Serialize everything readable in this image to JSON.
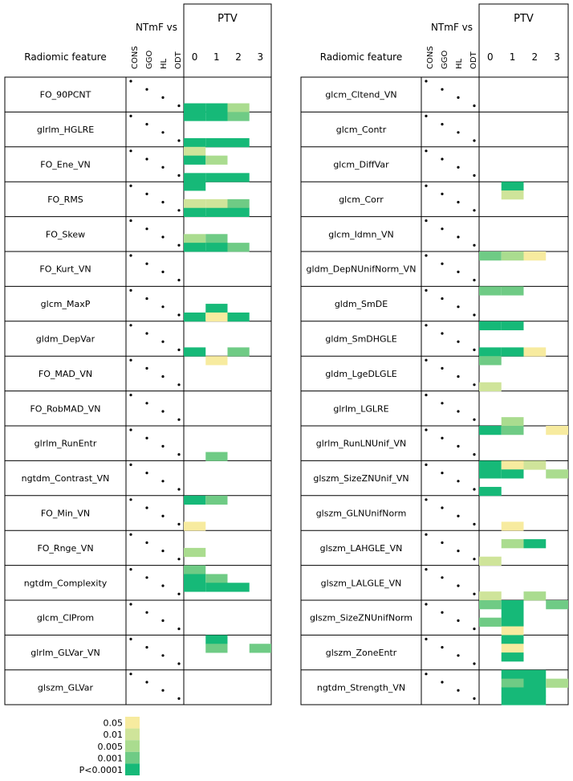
{
  "chart_data": {
    "type": "heatmap",
    "header": {
      "feature_col": "Radiomic feature",
      "group_title": "NTmF vs",
      "sub_labels": [
        "CONS",
        "GGO",
        "HL",
        "ODT"
      ],
      "ptv_title": "PTV",
      "ptv_levels": [
        "0",
        "1",
        "2",
        "3"
      ]
    },
    "legend": [
      {
        "label": "0.05",
        "color": "#f7eb9f"
      },
      {
        "label": "0.01",
        "color": "#cfe49a"
      },
      {
        "label": "0.005",
        "color": "#aadc8f"
      },
      {
        "label": "0.001",
        "color": "#6fcb85"
      },
      {
        "label": "P<0.0001",
        "color": "#16b978"
      }
    ],
    "colors_by_level": [
      "#16b978",
      "#6fcb85",
      "#aadc8f",
      "#cfe49a",
      "#f7eb9f"
    ],
    "level_meaning": "index into legend from darkest (0 = P<0.0001) to lightest (4 = 0.05)",
    "panels": [
      {
        "features": [
          "FO_90PCNT",
          "glrlm_HGLRE",
          "FO_Ene_VN",
          "FO_RMS",
          "FO_Skew",
          "FO_Kurt_VN",
          "glcm_MaxP",
          "gldm_DepVar",
          "FO_MAD_VN",
          "FO_RobMAD_VN",
          "glrlm_RunEntr",
          "ngtdm_Contrast_VN",
          "FO_Min_VN",
          "FO_Rnge_VN",
          "ngtdm_Complexity",
          "glcm_ClProm",
          "glrlm_GLVar_VN",
          "glszm_GLVar"
        ],
        "cells": [
          {
            "feature": 0,
            "row": 3,
            "ptv": 0,
            "level": 0
          },
          {
            "feature": 0,
            "row": 3,
            "ptv": 1,
            "level": 0
          },
          {
            "feature": 0,
            "row": 3,
            "ptv": 2,
            "level": 2
          },
          {
            "feature": 1,
            "row": 0,
            "ptv": 0,
            "level": 0
          },
          {
            "feature": 1,
            "row": 0,
            "ptv": 1,
            "level": 0
          },
          {
            "feature": 1,
            "row": 0,
            "ptv": 2,
            "level": 1
          },
          {
            "feature": 1,
            "row": 3,
            "ptv": 0,
            "level": 0
          },
          {
            "feature": 1,
            "row": 3,
            "ptv": 1,
            "level": 0
          },
          {
            "feature": 1,
            "row": 3,
            "ptv": 2,
            "level": 0
          },
          {
            "feature": 2,
            "row": 0,
            "ptv": 0,
            "level": 3
          },
          {
            "feature": 2,
            "row": 1,
            "ptv": 0,
            "level": 0
          },
          {
            "feature": 2,
            "row": 1,
            "ptv": 1,
            "level": 2
          },
          {
            "feature": 2,
            "row": 3,
            "ptv": 0,
            "level": 0
          },
          {
            "feature": 2,
            "row": 3,
            "ptv": 1,
            "level": 0
          },
          {
            "feature": 2,
            "row": 3,
            "ptv": 2,
            "level": 0
          },
          {
            "feature": 3,
            "row": 0,
            "ptv": 0,
            "level": 0
          },
          {
            "feature": 3,
            "row": 2,
            "ptv": 0,
            "level": 3
          },
          {
            "feature": 3,
            "row": 2,
            "ptv": 1,
            "level": 3
          },
          {
            "feature": 3,
            "row": 2,
            "ptv": 2,
            "level": 1
          },
          {
            "feature": 3,
            "row": 3,
            "ptv": 0,
            "level": 0
          },
          {
            "feature": 3,
            "row": 3,
            "ptv": 1,
            "level": 0
          },
          {
            "feature": 3,
            "row": 3,
            "ptv": 2,
            "level": 0
          },
          {
            "feature": 4,
            "row": 2,
            "ptv": 0,
            "level": 2
          },
          {
            "feature": 4,
            "row": 2,
            "ptv": 1,
            "level": 1
          },
          {
            "feature": 4,
            "row": 3,
            "ptv": 0,
            "level": 0
          },
          {
            "feature": 4,
            "row": 3,
            "ptv": 1,
            "level": 0
          },
          {
            "feature": 4,
            "row": 3,
            "ptv": 2,
            "level": 1
          },
          {
            "feature": 6,
            "row": 2,
            "ptv": 1,
            "level": 0
          },
          {
            "feature": 6,
            "row": 3,
            "ptv": 0,
            "level": 0
          },
          {
            "feature": 6,
            "row": 3,
            "ptv": 1,
            "level": 4
          },
          {
            "feature": 6,
            "row": 3,
            "ptv": 2,
            "level": 0
          },
          {
            "feature": 7,
            "row": 3,
            "ptv": 0,
            "level": 0
          },
          {
            "feature": 7,
            "row": 3,
            "ptv": 2,
            "level": 1
          },
          {
            "feature": 8,
            "row": 0,
            "ptv": 1,
            "level": 4
          },
          {
            "feature": 10,
            "row": 3,
            "ptv": 1,
            "level": 1
          },
          {
            "feature": 12,
            "row": 0,
            "ptv": 0,
            "level": 0
          },
          {
            "feature": 12,
            "row": 0,
            "ptv": 1,
            "level": 1
          },
          {
            "feature": 12,
            "row": 3,
            "ptv": 0,
            "level": 4
          },
          {
            "feature": 13,
            "row": 2,
            "ptv": 0,
            "level": 2
          },
          {
            "feature": 14,
            "row": 0,
            "ptv": 0,
            "level": 1
          },
          {
            "feature": 14,
            "row": 1,
            "ptv": 0,
            "level": 0
          },
          {
            "feature": 14,
            "row": 1,
            "ptv": 1,
            "level": 1
          },
          {
            "feature": 14,
            "row": 2,
            "ptv": 0,
            "level": 0
          },
          {
            "feature": 14,
            "row": 2,
            "ptv": 1,
            "level": 0
          },
          {
            "feature": 14,
            "row": 2,
            "ptv": 2,
            "level": 0
          },
          {
            "feature": 16,
            "row": 0,
            "ptv": 1,
            "level": 0
          },
          {
            "feature": 16,
            "row": 1,
            "ptv": 1,
            "level": 1
          },
          {
            "feature": 16,
            "row": 1,
            "ptv": 3,
            "level": 1
          }
        ]
      },
      {
        "features": [
          "glcm_Cltend_VN",
          "glcm_Contr",
          "glcm_DiffVar",
          "glcm_Corr",
          "glcm_Idmn_VN",
          "gldm_DepNUnifNorm_VN",
          "gldm_SmDE",
          "gldm_SmDHGLE",
          "gldm_LgeDLGLE",
          "glrlm_LGLRE",
          "glrlm_RunLNUnif_VN",
          "glszm_SizeZNUnif_VN",
          "glszm_GLNUnifNorm",
          "glszm_LAHGLE_VN",
          "glszm_LALGLE_VN",
          "glszm_SizeZNUnifNorm",
          "glszm_ZoneEntr",
          "ngtdm_Strength_VN"
        ],
        "cells": [
          {
            "feature": 3,
            "row": 0,
            "ptv": 1,
            "level": 0
          },
          {
            "feature": 3,
            "row": 1,
            "ptv": 1,
            "level": 3
          },
          {
            "feature": 5,
            "row": 0,
            "ptv": 0,
            "level": 1
          },
          {
            "feature": 5,
            "row": 0,
            "ptv": 1,
            "level": 2
          },
          {
            "feature": 5,
            "row": 0,
            "ptv": 2,
            "level": 4
          },
          {
            "feature": 6,
            "row": 0,
            "ptv": 0,
            "level": 1
          },
          {
            "feature": 6,
            "row": 0,
            "ptv": 1,
            "level": 1
          },
          {
            "feature": 7,
            "row": 0,
            "ptv": 0,
            "level": 0
          },
          {
            "feature": 7,
            "row": 0,
            "ptv": 1,
            "level": 0
          },
          {
            "feature": 7,
            "row": 3,
            "ptv": 0,
            "level": 0
          },
          {
            "feature": 7,
            "row": 3,
            "ptv": 1,
            "level": 0
          },
          {
            "feature": 7,
            "row": 3,
            "ptv": 2,
            "level": 4
          },
          {
            "feature": 8,
            "row": 0,
            "ptv": 0,
            "level": 1
          },
          {
            "feature": 8,
            "row": 3,
            "ptv": 0,
            "level": 3
          },
          {
            "feature": 9,
            "row": 3,
            "ptv": 1,
            "level": 2
          },
          {
            "feature": 10,
            "row": 0,
            "ptv": 0,
            "level": 0
          },
          {
            "feature": 10,
            "row": 0,
            "ptv": 1,
            "level": 1
          },
          {
            "feature": 10,
            "row": 0,
            "ptv": 3,
            "level": 4
          },
          {
            "feature": 11,
            "row": 0,
            "ptv": 0,
            "level": 0
          },
          {
            "feature": 11,
            "row": 0,
            "ptv": 1,
            "level": 4
          },
          {
            "feature": 11,
            "row": 0,
            "ptv": 2,
            "level": 3
          },
          {
            "feature": 11,
            "row": 1,
            "ptv": 0,
            "level": 0
          },
          {
            "feature": 11,
            "row": 1,
            "ptv": 1,
            "level": 0
          },
          {
            "feature": 11,
            "row": 1,
            "ptv": 3,
            "level": 2
          },
          {
            "feature": 11,
            "row": 3,
            "ptv": 0,
            "level": 0
          },
          {
            "feature": 12,
            "row": 3,
            "ptv": 1,
            "level": 4
          },
          {
            "feature": 13,
            "row": 1,
            "ptv": 1,
            "level": 2
          },
          {
            "feature": 13,
            "row": 1,
            "ptv": 2,
            "level": 0
          },
          {
            "feature": 13,
            "row": 3,
            "ptv": 0,
            "level": 3
          },
          {
            "feature": 14,
            "row": 3,
            "ptv": 0,
            "level": 3
          },
          {
            "feature": 14,
            "row": 3,
            "ptv": 2,
            "level": 2
          },
          {
            "feature": 15,
            "row": 0,
            "ptv": 0,
            "level": 1
          },
          {
            "feature": 15,
            "row": 0,
            "ptv": 1,
            "level": 0
          },
          {
            "feature": 15,
            "row": 0,
            "ptv": 3,
            "level": 1
          },
          {
            "feature": 15,
            "row": 1,
            "ptv": 1,
            "level": 0
          },
          {
            "feature": 15,
            "row": 2,
            "ptv": 0,
            "level": 1
          },
          {
            "feature": 15,
            "row": 2,
            "ptv": 1,
            "level": 0
          },
          {
            "feature": 15,
            "row": 3,
            "ptv": 1,
            "level": 4
          },
          {
            "feature": 16,
            "row": 0,
            "ptv": 1,
            "level": 0
          },
          {
            "feature": 16,
            "row": 1,
            "ptv": 1,
            "level": 4
          },
          {
            "feature": 16,
            "row": 2,
            "ptv": 1,
            "level": 0
          },
          {
            "feature": 17,
            "row": 0,
            "ptv": 1,
            "level": 0
          },
          {
            "feature": 17,
            "row": 0,
            "ptv": 2,
            "level": 0
          },
          {
            "feature": 17,
            "row": 1,
            "ptv": 1,
            "level": 1
          },
          {
            "feature": 17,
            "row": 1,
            "ptv": 2,
            "level": 0
          },
          {
            "feature": 17,
            "row": 1,
            "ptv": 3,
            "level": 2
          },
          {
            "feature": 17,
            "row": 2,
            "ptv": 1,
            "level": 0
          },
          {
            "feature": 17,
            "row": 2,
            "ptv": 2,
            "level": 0
          },
          {
            "feature": 17,
            "row": 3,
            "ptv": 1,
            "level": 0
          },
          {
            "feature": 17,
            "row": 3,
            "ptv": 2,
            "level": 0
          }
        ]
      }
    ]
  }
}
